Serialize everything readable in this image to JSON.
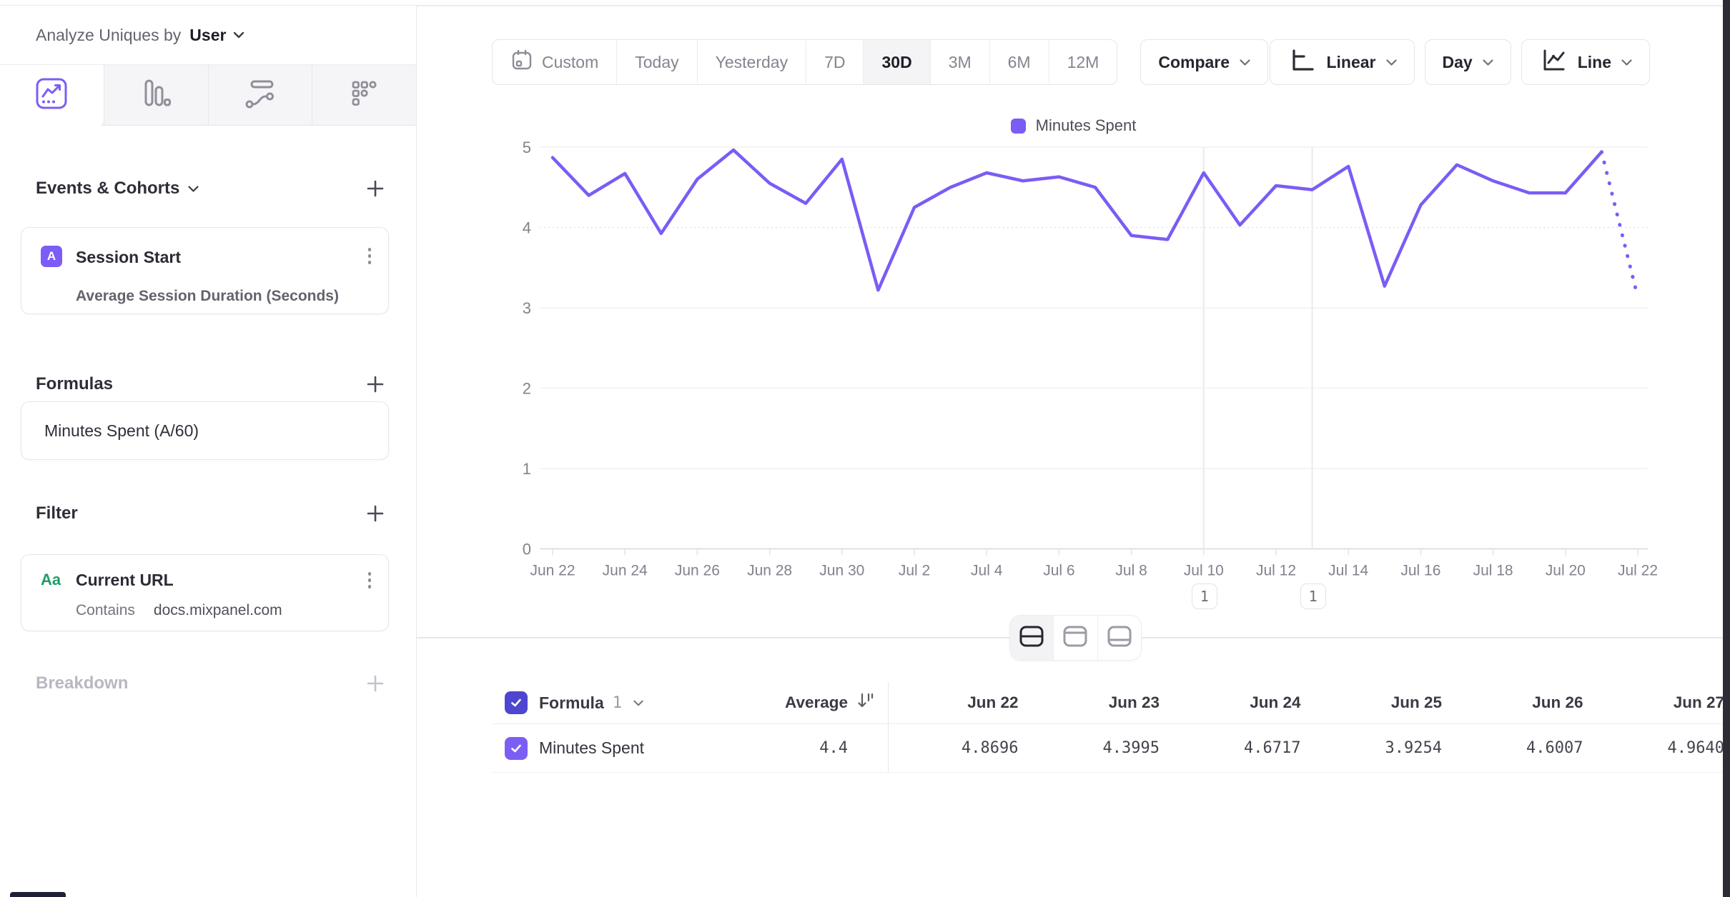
{
  "sidebar": {
    "analyze_label": "Analyze Uniques by",
    "analyze_value": "User",
    "events_title": "Events & Cohorts",
    "event_card": {
      "badge": "A",
      "title": "Session Start",
      "subtitle": "Average Session Duration (Seconds)"
    },
    "formulas_title": "Formulas",
    "formula_card": {
      "title": "Minutes Spent (A/60)"
    },
    "filter_title": "Filter",
    "filter_card": {
      "badge": "Aa",
      "title": "Current URL",
      "operator": "Contains",
      "value": "docs.mixpanel.com"
    },
    "breakdown_title": "Breakdown"
  },
  "toolbar": {
    "date_ranges": [
      "Custom",
      "Today",
      "Yesterday",
      "7D",
      "30D",
      "3M",
      "6M",
      "12M"
    ],
    "active_range": "30D",
    "compare_label": "Compare",
    "scale_label": "Linear",
    "interval_label": "Day",
    "chart_type_label": "Line"
  },
  "chart_data": {
    "type": "line",
    "title": "",
    "xlabel": "",
    "ylabel": "",
    "ylim": [
      0,
      5
    ],
    "yticks": [
      0,
      1,
      2,
      3,
      4,
      5
    ],
    "grid": "horizontal",
    "legend_position": "top-center",
    "x_label_every": 2,
    "last_segment_style": "dotted",
    "x": [
      "Jun 22",
      "Jun 23",
      "Jun 24",
      "Jun 25",
      "Jun 26",
      "Jun 27",
      "Jun 28",
      "Jun 29",
      "Jun 30",
      "Jul 1",
      "Jul 2",
      "Jul 3",
      "Jul 4",
      "Jul 5",
      "Jul 6",
      "Jul 7",
      "Jul 8",
      "Jul 9",
      "Jul 10",
      "Jul 11",
      "Jul 12",
      "Jul 13",
      "Jul 14",
      "Jul 15",
      "Jul 16",
      "Jul 17",
      "Jul 18",
      "Jul 19",
      "Jul 20",
      "Jul 21",
      "Jul 22"
    ],
    "series": [
      {
        "name": "Minutes Spent",
        "color": "#7b5cf5",
        "values": [
          4.8696,
          4.3995,
          4.6717,
          3.9254,
          4.6007,
          4.964,
          4.55,
          4.3,
          4.85,
          3.22,
          4.25,
          4.5,
          4.68,
          4.58,
          4.63,
          4.5,
          3.9,
          3.85,
          4.68,
          4.03,
          4.52,
          4.47,
          4.76,
          3.27,
          4.28,
          4.78,
          4.58,
          4.43,
          4.43,
          4.94,
          3.13
        ]
      }
    ],
    "annotations": [
      {
        "label": "1",
        "date": "Jul 10"
      },
      {
        "label": "1",
        "date": "Jul 13"
      }
    ]
  },
  "table": {
    "group_label": "Formula",
    "group_number": "1",
    "average_label": "Average",
    "date_columns": [
      "Jun 22",
      "Jun 23",
      "Jun 24",
      "Jun 25",
      "Jun 26",
      "Jun 27"
    ],
    "rows": [
      {
        "name": "Minutes Spent",
        "average": "4.4",
        "values": [
          "4.8696",
          "4.3995",
          "4.6717",
          "3.9254",
          "4.6007",
          "4.9640"
        ]
      }
    ]
  },
  "colors": {
    "accent_purple": "#7b5cf5",
    "checkbox_header": "#4f46cf",
    "checkbox_row": "#7d5ef5",
    "filter_badge_green": "#1f9d67"
  }
}
